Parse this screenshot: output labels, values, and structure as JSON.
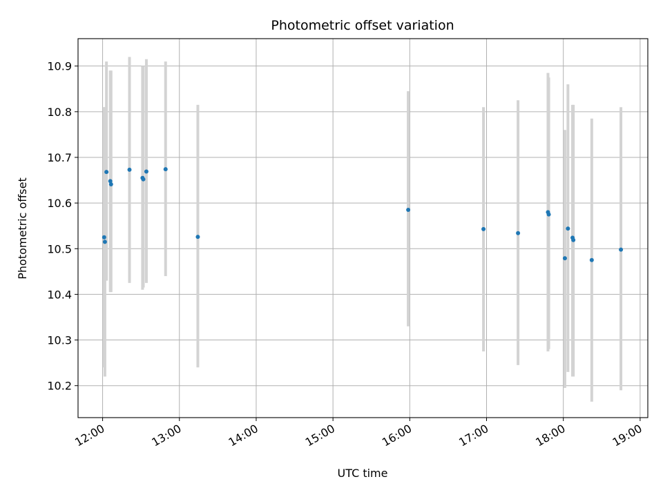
{
  "chart_data": {
    "type": "scatter",
    "title": "Photometric offset variation",
    "xlabel": "UTC time",
    "ylabel": "Photometric offset",
    "x_unit": "hours (UTC)",
    "xlim": [
      11.68,
      19.1
    ],
    "ylim": [
      10.13,
      10.96
    ],
    "x_ticks": [
      12,
      13,
      14,
      15,
      16,
      17,
      18,
      19
    ],
    "x_tick_labels": [
      "12:00",
      "13:00",
      "14:00",
      "15:00",
      "16:00",
      "17:00",
      "18:00",
      "19:00"
    ],
    "y_ticks": [
      10.2,
      10.3,
      10.4,
      10.5,
      10.6,
      10.7,
      10.8,
      10.9
    ],
    "y_tick_labels": [
      "10.2",
      "10.3",
      "10.4",
      "10.5",
      "10.6",
      "10.7",
      "10.8",
      "10.9"
    ],
    "grid": true,
    "point_color": "#1f77b4",
    "errorbar_color": "#d3d3d3",
    "points": [
      {
        "x": 12.02,
        "y": 10.525,
        "ylow": 10.24,
        "yhigh": 10.81
      },
      {
        "x": 12.03,
        "y": 10.515,
        "ylow": 10.22,
        "yhigh": 10.81
      },
      {
        "x": 12.05,
        "y": 10.668,
        "ylow": 10.43,
        "yhigh": 10.91
      },
      {
        "x": 12.1,
        "y": 10.648,
        "ylow": 10.405,
        "yhigh": 10.89
      },
      {
        "x": 12.11,
        "y": 10.641,
        "ylow": 10.405,
        "yhigh": 10.89
      },
      {
        "x": 12.35,
        "y": 10.673,
        "ylow": 10.425,
        "yhigh": 10.92
      },
      {
        "x": 12.52,
        "y": 10.655,
        "ylow": 10.41,
        "yhigh": 10.9
      },
      {
        "x": 12.53,
        "y": 10.652,
        "ylow": 10.415,
        "yhigh": 10.9
      },
      {
        "x": 12.57,
        "y": 10.669,
        "ylow": 10.425,
        "yhigh": 10.915
      },
      {
        "x": 12.82,
        "y": 10.674,
        "ylow": 10.44,
        "yhigh": 10.91
      },
      {
        "x": 13.24,
        "y": 10.526,
        "ylow": 10.24,
        "yhigh": 10.815
      },
      {
        "x": 15.98,
        "y": 10.585,
        "ylow": 10.33,
        "yhigh": 10.845
      },
      {
        "x": 16.96,
        "y": 10.543,
        "ylow": 10.275,
        "yhigh": 10.81
      },
      {
        "x": 17.41,
        "y": 10.534,
        "ylow": 10.245,
        "yhigh": 10.825
      },
      {
        "x": 17.8,
        "y": 10.58,
        "ylow": 10.275,
        "yhigh": 10.885
      },
      {
        "x": 17.81,
        "y": 10.575,
        "ylow": 10.28,
        "yhigh": 10.875
      },
      {
        "x": 18.02,
        "y": 10.479,
        "ylow": 10.195,
        "yhigh": 10.76
      },
      {
        "x": 18.06,
        "y": 10.544,
        "ylow": 10.23,
        "yhigh": 10.86
      },
      {
        "x": 18.12,
        "y": 10.524,
        "ylow": 10.22,
        "yhigh": 10.815
      },
      {
        "x": 18.13,
        "y": 10.519,
        "ylow": 10.22,
        "yhigh": 10.815
      },
      {
        "x": 18.37,
        "y": 10.475,
        "ylow": 10.165,
        "yhigh": 10.785
      },
      {
        "x": 18.75,
        "y": 10.498,
        "ylow": 10.19,
        "yhigh": 10.81
      }
    ]
  }
}
